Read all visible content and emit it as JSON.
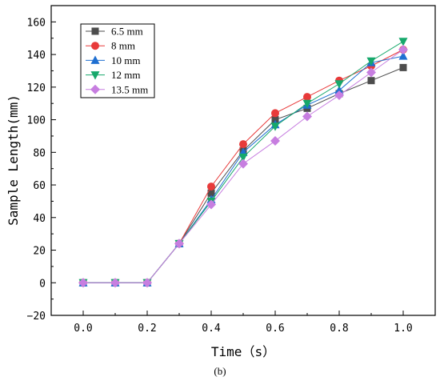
{
  "chart_data": {
    "type": "line",
    "title": "",
    "xlabel": "Time（s）",
    "ylabel": "Sample Length(mm)",
    "caption": "(b)",
    "xlim": [
      -0.1,
      1.1
    ],
    "ylim": [
      -20,
      170
    ],
    "xticks": [
      0.0,
      0.2,
      0.4,
      0.6,
      0.8,
      1.0
    ],
    "xtick_labels": [
      "0.0",
      "0.2",
      "0.4",
      "0.6",
      "0.8",
      "1.0"
    ],
    "yticks": [
      -20,
      0,
      20,
      40,
      60,
      80,
      100,
      120,
      140,
      160
    ],
    "ytick_labels": [
      "−20",
      "0",
      "20",
      "40",
      "60",
      "80",
      "100",
      "120",
      "140",
      "160"
    ],
    "legend_position": "top-left",
    "grid": false,
    "x": [
      0.0,
      0.1,
      0.2,
      0.3,
      0.4,
      0.5,
      0.6,
      0.7,
      0.8,
      0.9,
      1.0
    ],
    "series": [
      {
        "name": "6.5 mm",
        "marker": "square",
        "color": "#4d4d4d",
        "values": [
          0,
          0,
          0,
          24,
          55,
          81,
          100,
          107,
          116,
          124,
          132
        ]
      },
      {
        "name": "8 mm",
        "marker": "circle",
        "color": "#e83a3a",
        "values": [
          0,
          0,
          0,
          24,
          59,
          85,
          104,
          114,
          124,
          133,
          143
        ]
      },
      {
        "name": "10 mm",
        "marker": "triangle-up",
        "color": "#1f6fd1",
        "values": [
          0,
          0,
          0,
          24,
          51,
          80,
          97,
          109,
          118,
          135,
          139
        ]
      },
      {
        "name": "12 mm",
        "marker": "triangle-down",
        "color": "#16a86b",
        "values": [
          0,
          0,
          0,
          24,
          50,
          77,
          96,
          110,
          122,
          136,
          148
        ]
      },
      {
        "name": "13.5 mm",
        "marker": "diamond",
        "color": "#c77ee0",
        "values": [
          0,
          0,
          0,
          24,
          48,
          73,
          87,
          102,
          115,
          129,
          143
        ]
      }
    ]
  }
}
